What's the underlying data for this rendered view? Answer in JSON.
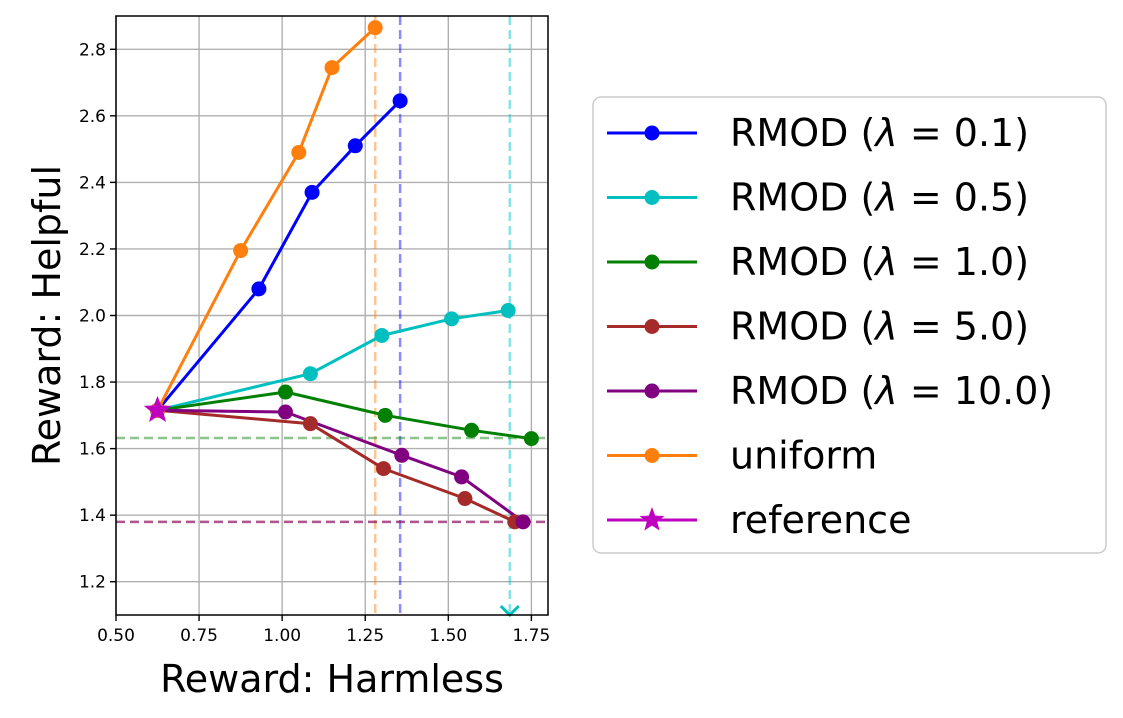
{
  "chart_data": {
    "type": "line",
    "title": "",
    "xlabel": "Reward: Harmless",
    "ylabel": "Reward: Helpful",
    "xlim": [
      0.5,
      1.8
    ],
    "ylim": [
      1.1,
      2.9
    ],
    "xticks": [
      0.5,
      0.75,
      1.0,
      1.25,
      1.5,
      1.75
    ],
    "xtick_labels": [
      "0.50",
      "0.75",
      "1.00",
      "1.25",
      "1.50",
      "1.75"
    ],
    "yticks": [
      1.2,
      1.4,
      1.6,
      1.8,
      2.0,
      2.2,
      2.4,
      2.6,
      2.8
    ],
    "ytick_labels": [
      "1.2",
      "1.4",
      "1.6",
      "1.8",
      "2.0",
      "2.2",
      "2.4",
      "2.6",
      "2.8"
    ],
    "grid": true,
    "legend_position": "outside-right",
    "series": [
      {
        "name": "RMOD ",
        "lambda": "0.1",
        "color": "#0000ff",
        "marker": "circle",
        "x": [
          0.625,
          0.93,
          1.09,
          1.22,
          1.355
        ],
        "y": [
          1.715,
          2.08,
          2.37,
          2.51,
          2.645
        ]
      },
      {
        "name": "RMOD ",
        "lambda": "0.5",
        "color": "#00bfbf",
        "marker": "circle",
        "x": [
          0.625,
          1.085,
          1.3,
          1.51,
          1.68
        ],
        "y": [
          1.715,
          1.825,
          1.94,
          1.99,
          2.015
        ]
      },
      {
        "name": "RMOD ",
        "lambda": "1.0",
        "color": "#008000",
        "marker": "circle",
        "x": [
          0.625,
          1.01,
          1.31,
          1.57,
          1.75
        ],
        "y": [
          1.715,
          1.77,
          1.7,
          1.655,
          1.63
        ]
      },
      {
        "name": "RMOD ",
        "lambda": "5.0",
        "color": "#a52a2a",
        "marker": "circle",
        "x": [
          0.625,
          1.085,
          1.305,
          1.55,
          1.7
        ],
        "y": [
          1.715,
          1.675,
          1.54,
          1.45,
          1.38
        ]
      },
      {
        "name": "RMOD ",
        "lambda": "10.0",
        "color": "#800080",
        "marker": "circle",
        "x": [
          0.625,
          1.01,
          1.36,
          1.54,
          1.725
        ],
        "y": [
          1.715,
          1.71,
          1.58,
          1.515,
          1.38
        ]
      },
      {
        "name": "uniform",
        "color": "#ff7f0e",
        "marker": "circle",
        "x": [
          0.625,
          0.875,
          1.05,
          1.15,
          1.28
        ],
        "y": [
          1.715,
          2.195,
          2.49,
          2.745,
          2.865
        ]
      },
      {
        "name": "reference",
        "color": "#bf00bf",
        "marker": "star",
        "x": [
          0.625
        ],
        "y": [
          1.715
        ]
      }
    ],
    "reference_lines": [
      {
        "orientation": "vertical",
        "value": 1.28,
        "color": "#ff7f0e"
      },
      {
        "orientation": "vertical",
        "value": 1.355,
        "color": "#0000ff"
      },
      {
        "orientation": "vertical",
        "value": 1.685,
        "color": "#00bfbf"
      },
      {
        "orientation": "horizontal",
        "value": 1.632,
        "color": "#008000"
      },
      {
        "orientation": "horizontal",
        "value": 1.38,
        "color": "#a52a2a"
      },
      {
        "orientation": "horizontal",
        "value": 1.38,
        "color": "#800080"
      }
    ],
    "annotations": [
      {
        "type": "x-marker",
        "x": 1.685,
        "y": 1.1,
        "color": "#00bfbf"
      }
    ]
  }
}
